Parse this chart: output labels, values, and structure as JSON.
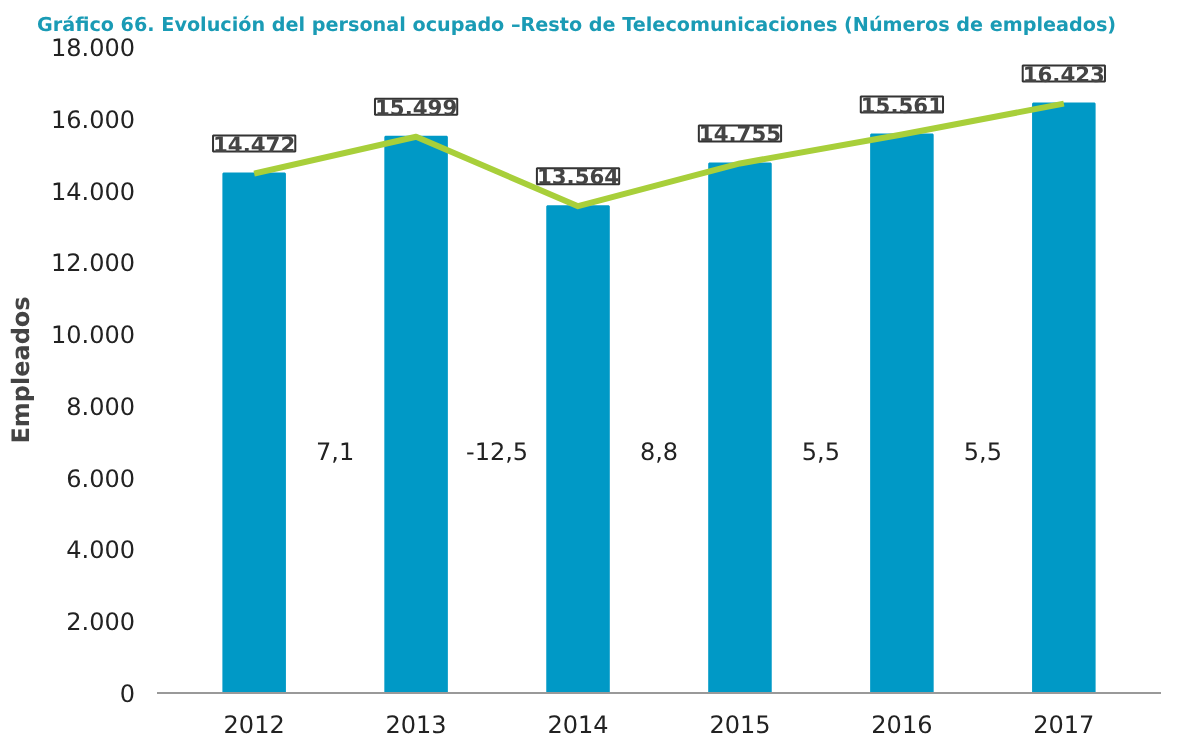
{
  "chart_data": {
    "type": "bar",
    "title": "Gráfico 66. Evolución del personal ocupado –Resto de Telecomunicaciones (Números de empleados)",
    "ylabel": "Empleados",
    "categories": [
      "2012",
      "2013",
      "2014",
      "2015",
      "2016",
      "2017"
    ],
    "series": [
      {
        "color": "#0099c6",
        "values": [
          14472,
          15499,
          13564,
          14755,
          15561,
          16423
        ]
      },
      {
        "type": "line",
        "color": "#a8cf3a",
        "values": [
          14472,
          15499,
          13564,
          14755,
          15561,
          16423
        ],
        "value_labels": [
          "14.472",
          "15.499",
          "13.564",
          "14.755",
          "15.561",
          "16.423"
        ]
      }
    ],
    "annotations": [
      "7,1",
      "-12,5",
      "8,8",
      "5,5",
      "5,5"
    ],
    "ylim": [
      0,
      18000
    ],
    "yticks": [
      {
        "value": 0,
        "label": "0"
      },
      {
        "value": 2000,
        "label": "2.000"
      },
      {
        "value": 4000,
        "label": "4.000"
      },
      {
        "value": 6000,
        "label": "6.000"
      },
      {
        "value": 8000,
        "label": "8.000"
      },
      {
        "value": 10000,
        "label": "10.000"
      },
      {
        "value": 12000,
        "label": "12.000"
      },
      {
        "value": 14000,
        "label": "14.000"
      },
      {
        "value": 16000,
        "label": "16.000"
      },
      {
        "value": 18000,
        "label": "18.000"
      }
    ],
    "grid": false
  }
}
